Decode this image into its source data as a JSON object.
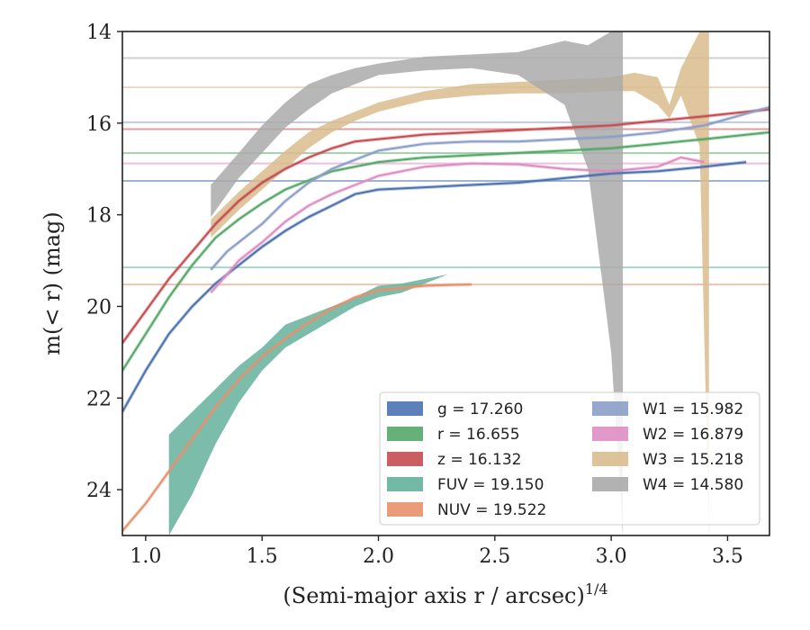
{
  "chart_data": {
    "type": "line",
    "title": "",
    "xlabel": "(Semi-major axis r / arcsec)",
    "xlabel_sup": "1/4",
    "ylabel": "m(< r) (mag)",
    "xlim": [
      0.9,
      3.68
    ],
    "ylim": [
      25,
      14
    ],
    "y_inverted": true,
    "grid": false,
    "legend_position": "lower-right",
    "x_ticks": [
      1.0,
      1.5,
      2.0,
      2.5,
      3.0,
      3.5
    ],
    "x_tick_labels": [
      "1.0",
      "1.5",
      "2.0",
      "2.5",
      "3.0",
      "3.5"
    ],
    "y_ticks": [
      14,
      16,
      18,
      20,
      22,
      24
    ],
    "y_tick_labels": [
      "14",
      "16",
      "18",
      "20",
      "22",
      "24"
    ],
    "series": [
      {
        "name": "g",
        "legend_label": "g = 17.260",
        "asymptote": 17.26,
        "color": "#4c72b0",
        "band": false,
        "x": [
          0.9,
          1.0,
          1.1,
          1.2,
          1.3,
          1.4,
          1.5,
          1.6,
          1.7,
          1.8,
          1.9,
          2.0,
          2.2,
          2.4,
          2.6,
          2.8,
          3.0,
          3.2,
          3.4,
          3.58
        ],
        "y": [
          22.3,
          21.4,
          20.6,
          20.0,
          19.5,
          19.1,
          18.7,
          18.35,
          18.05,
          17.8,
          17.55,
          17.45,
          17.4,
          17.35,
          17.3,
          17.2,
          17.1,
          17.05,
          16.95,
          16.85
        ]
      },
      {
        "name": "r",
        "legend_label": "r = 16.655",
        "asymptote": 16.655,
        "color": "#55a868",
        "band": false,
        "x": [
          0.9,
          1.0,
          1.1,
          1.2,
          1.3,
          1.4,
          1.5,
          1.6,
          1.7,
          1.8,
          1.9,
          2.0,
          2.2,
          2.4,
          2.6,
          2.8,
          3.0,
          3.2,
          3.4,
          3.68
        ],
        "y": [
          21.4,
          20.6,
          19.8,
          19.1,
          18.5,
          18.1,
          17.75,
          17.45,
          17.25,
          17.05,
          16.95,
          16.85,
          16.75,
          16.7,
          16.65,
          16.6,
          16.55,
          16.45,
          16.35,
          16.2
        ]
      },
      {
        "name": "z",
        "legend_label": "z = 16.132",
        "asymptote": 16.132,
        "color": "#c44e52",
        "band": false,
        "x": [
          0.9,
          1.0,
          1.1,
          1.2,
          1.3,
          1.4,
          1.5,
          1.6,
          1.7,
          1.8,
          1.9,
          2.0,
          2.2,
          2.4,
          2.6,
          2.8,
          3.0,
          3.2,
          3.4,
          3.68
        ],
        "y": [
          20.8,
          20.1,
          19.4,
          18.8,
          18.2,
          17.7,
          17.3,
          17.0,
          16.75,
          16.55,
          16.4,
          16.35,
          16.25,
          16.2,
          16.15,
          16.1,
          16.05,
          15.95,
          15.85,
          15.7
        ]
      },
      {
        "name": "FUV",
        "legend_label": "FUV = 19.150",
        "asymptote": 19.15,
        "color": "#64b19b",
        "band": true,
        "x": [
          1.1,
          1.2,
          1.3,
          1.4,
          1.5,
          1.6,
          1.7,
          1.8,
          1.9,
          2.0,
          2.1,
          2.2,
          2.3,
          2.4
        ],
        "y_low": [
          25.0,
          24.1,
          23.0,
          22.1,
          21.4,
          20.9,
          20.6,
          20.3,
          20.0,
          19.8,
          19.7,
          19.5,
          19.3,
          19.3
        ],
        "y_high": [
          22.8,
          22.3,
          21.8,
          21.3,
          20.9,
          20.4,
          20.2,
          20.0,
          19.8,
          19.55,
          19.5,
          19.4,
          19.3,
          19.3
        ]
      },
      {
        "name": "NUV",
        "legend_label": "NUV = 19.522",
        "asymptote": 19.522,
        "color": "#e8906c",
        "band": false,
        "x": [
          0.9,
          1.0,
          1.1,
          1.2,
          1.3,
          1.4,
          1.5,
          1.6,
          1.7,
          1.8,
          1.9,
          2.0,
          2.2,
          2.4
        ],
        "y": [
          24.9,
          24.3,
          23.6,
          22.9,
          22.2,
          21.6,
          21.1,
          20.7,
          20.35,
          20.05,
          19.8,
          19.65,
          19.55,
          19.52
        ]
      },
      {
        "name": "W1",
        "legend_label": "W1 = 15.982",
        "asymptote": 15.982,
        "color": "#8c9fc8",
        "band": false,
        "x": [
          1.28,
          1.35,
          1.4,
          1.5,
          1.6,
          1.7,
          1.8,
          1.9,
          2.0,
          2.2,
          2.4,
          2.6,
          2.8,
          3.0,
          3.2,
          3.4,
          3.68
        ],
        "y": [
          19.2,
          18.8,
          18.6,
          18.2,
          17.7,
          17.3,
          17.0,
          16.8,
          16.6,
          16.45,
          16.4,
          16.4,
          16.35,
          16.3,
          16.2,
          16.05,
          15.65
        ]
      },
      {
        "name": "W2",
        "legend_label": "W2 = 16.879",
        "asymptote": 16.879,
        "color": "#dd8ec2",
        "band": false,
        "x": [
          1.28,
          1.35,
          1.4,
          1.5,
          1.6,
          1.7,
          1.8,
          1.9,
          2.0,
          2.2,
          2.4,
          2.6,
          2.8,
          3.0,
          3.1,
          3.2,
          3.3,
          3.4
        ],
        "y": [
          19.7,
          19.3,
          19.0,
          18.6,
          18.15,
          17.8,
          17.55,
          17.35,
          17.15,
          16.95,
          16.88,
          16.9,
          17.0,
          17.05,
          17.0,
          16.95,
          16.75,
          16.85
        ]
      },
      {
        "name": "W3",
        "legend_label": "W3 = 15.218",
        "asymptote": 15.218,
        "color": "#d9bc8e",
        "band": true,
        "x": [
          1.28,
          1.4,
          1.5,
          1.6,
          1.7,
          1.8,
          1.9,
          2.0,
          2.2,
          2.4,
          2.6,
          2.8,
          3.0,
          3.1,
          3.2,
          3.25,
          3.3,
          3.38,
          3.42
        ],
        "y_low": [
          18.5,
          17.9,
          17.45,
          17.0,
          16.55,
          16.2,
          15.95,
          15.75,
          15.5,
          15.4,
          15.35,
          15.35,
          15.3,
          15.3,
          15.6,
          15.9,
          15.4,
          16.5,
          25.0
        ],
        "y_high": [
          18.1,
          17.5,
          17.05,
          16.6,
          16.2,
          15.95,
          15.75,
          15.55,
          15.3,
          15.15,
          15.1,
          15.05,
          15.0,
          14.9,
          15.0,
          15.6,
          14.8,
          14.0,
          14.0
        ]
      },
      {
        "name": "W4",
        "legend_label": "W4 = 14.580",
        "asymptote": 14.58,
        "color": "#aaaaaa",
        "band": true,
        "x": [
          1.28,
          1.4,
          1.5,
          1.6,
          1.7,
          1.8,
          1.9,
          2.0,
          2.2,
          2.4,
          2.6,
          2.8,
          2.9,
          3.0,
          3.05
        ],
        "y_low": [
          18.05,
          17.2,
          16.65,
          16.1,
          15.7,
          15.35,
          15.15,
          14.95,
          14.85,
          14.8,
          14.95,
          15.6,
          17.0,
          21.0,
          25.0
        ],
        "y_high": [
          17.35,
          16.65,
          16.05,
          15.55,
          15.15,
          14.95,
          14.8,
          14.7,
          14.55,
          14.5,
          14.45,
          14.2,
          14.3,
          14.0,
          14.0
        ]
      }
    ]
  }
}
